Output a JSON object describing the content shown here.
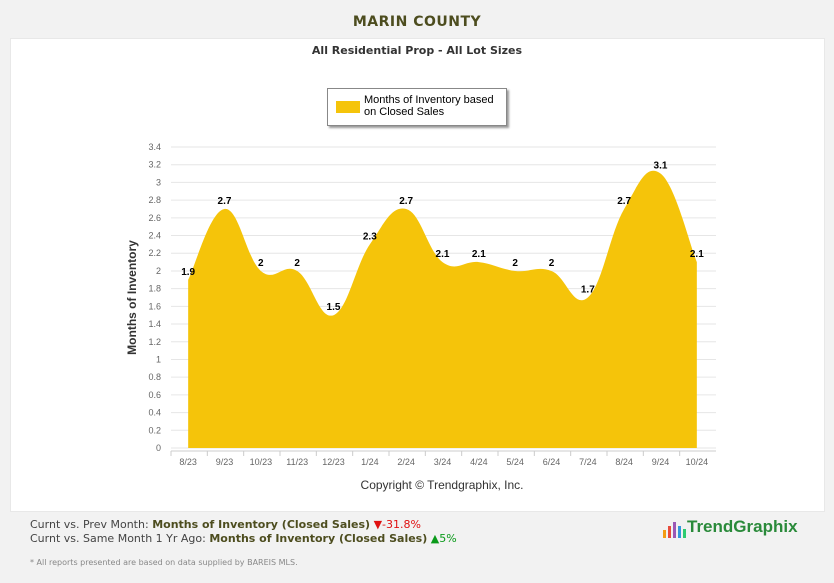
{
  "header": {
    "title": "MARIN COUNTY",
    "subtitle": "All Residential Prop - All Lot Sizes"
  },
  "chart_data": {
    "type": "area",
    "title": "All Residential Prop - All Lot Sizes",
    "ylabel": "Months of Inventory",
    "xlabel": "",
    "categories": [
      "8/23",
      "9/23",
      "10/23",
      "11/23",
      "12/23",
      "1/24",
      "2/24",
      "3/24",
      "4/24",
      "5/24",
      "6/24",
      "7/24",
      "8/24",
      "9/24",
      "10/24"
    ],
    "series": [
      {
        "name": "Months of Inventory based on Closed Sales",
        "values": [
          1.9,
          2.7,
          2,
          2,
          1.5,
          2.3,
          2.7,
          2.1,
          2.1,
          2,
          2,
          1.7,
          2.7,
          3.1,
          2.1
        ],
        "color": "#f5c40a"
      }
    ],
    "ylim": [
      0,
      3.4
    ],
    "yticks": [
      "0",
      "0.2",
      "0.4",
      "0.6",
      "0.8",
      "1",
      "1.2",
      "1.4",
      "1.6",
      "1.8",
      "2",
      "2.2",
      "2.4",
      "2.6",
      "2.8",
      "3",
      "3.2",
      "3.4"
    ],
    "grid": true,
    "legend": "top-center"
  },
  "copyright": "Copyright © Trendgraphix, Inc.",
  "comparisons": [
    {
      "label": "Curnt vs. Prev Month:",
      "metric": "Months of Inventory (Closed Sales)",
      "arrow": "▼",
      "change": "-31.8%",
      "direction": "down"
    },
    {
      "label": "Curnt vs. Same Month 1 Yr Ago:",
      "metric": "Months of Inventory (Closed Sales)",
      "arrow": "▲",
      "change": "5%",
      "direction": "up"
    }
  ],
  "footnote": "* All reports presented are based on data supplied by BAREIS MLS.",
  "logo": "TrendGraphix"
}
